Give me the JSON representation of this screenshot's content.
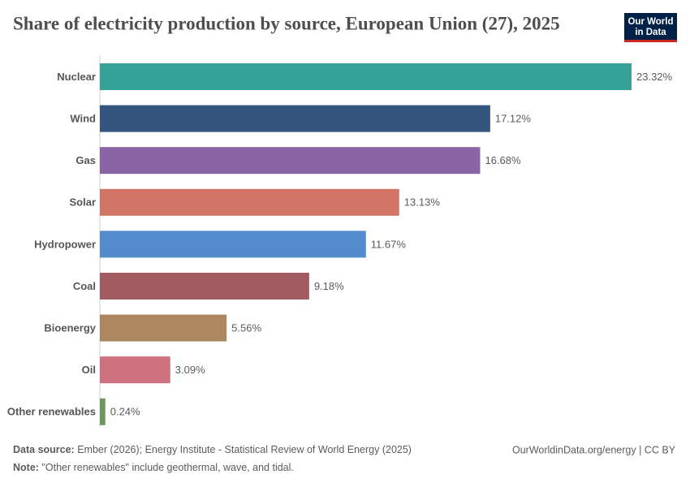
{
  "chart_data": {
    "type": "bar",
    "orientation": "horizontal",
    "title": "Share of electricity production by source, European Union (27), 2025",
    "categories": [
      "Nuclear",
      "Wind",
      "Gas",
      "Solar",
      "Hydropower",
      "Coal",
      "Bioenergy",
      "Oil",
      "Other renewables"
    ],
    "values": [
      23.32,
      17.12,
      16.68,
      13.13,
      11.67,
      9.18,
      5.56,
      3.09,
      0.24
    ],
    "value_labels": [
      "23.32%",
      "17.12%",
      "16.68%",
      "13.13%",
      "11.67%",
      "9.18%",
      "5.56%",
      "3.09%",
      "0.24%"
    ],
    "colors": [
      "#35a29a",
      "#34557d",
      "#8b64a8",
      "#d27566",
      "#548bcc",
      "#a25b62",
      "#ad8760",
      "#cf7180",
      "#6a9a5a"
    ]
  },
  "logo": [
    "Our World",
    "in Data"
  ],
  "footer": {
    "source_label": "Data source:",
    "source": "Ember (2026); Energy Institute - Statistical Review of World Energy (2025)",
    "note_label": "Note:",
    "note": "\"Other renewables\" include geothermal, wave, and tidal.",
    "url": "OurWorldinData.org/energy | CC BY"
  }
}
